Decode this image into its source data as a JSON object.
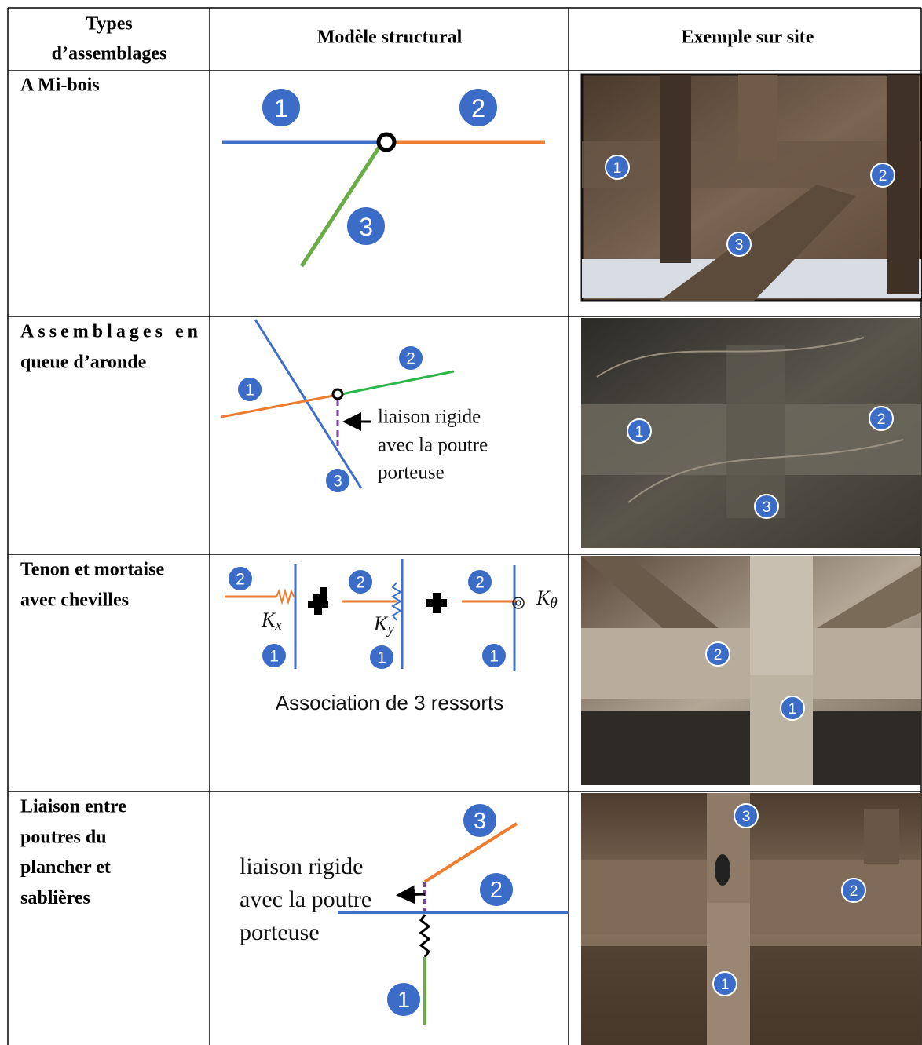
{
  "table": {
    "header": [
      [
        "Types",
        "d’assemblages"
      ],
      [
        "Modèle structural"
      ],
      [
        "Exemple sur site"
      ]
    ],
    "rows": [
      {
        "type": [
          "A Mi-bois"
        ],
        "model": {
          "badges": [
            "1",
            "2",
            "3"
          ]
        },
        "photo": {
          "badges": [
            "1",
            "2",
            "3"
          ]
        }
      },
      {
        "type": [
          "Assemblages en",
          "queue d’aronde"
        ],
        "model": {
          "badges": [
            "1",
            "2",
            "3"
          ],
          "note": [
            "liaison rigide",
            "avec la poutre",
            "porteuse"
          ]
        },
        "photo": {
          "badges": [
            "1",
            "2",
            "3"
          ]
        }
      },
      {
        "type": [
          "Tenon et mortaise",
          "avec chevilles"
        ],
        "model": {
          "badges": [
            "2",
            "1",
            "2",
            "1",
            "2",
            "1"
          ],
          "stiffness": [
            {
              "symbol": "K",
              "sub": "x"
            },
            {
              "symbol": "K",
              "sub": "y"
            },
            {
              "symbol": "K",
              "sub": "θ"
            }
          ],
          "caption": "Association de 3 ressorts"
        },
        "photo": {
          "badges": [
            "2",
            "1"
          ]
        }
      },
      {
        "type": [
          "Liaison entre",
          "poutres du",
          "plancher et",
          "sablières"
        ],
        "model": {
          "badges": [
            "3",
            "2",
            "1"
          ],
          "note": [
            "liaison rigide",
            "avec la poutre",
            "porteuse"
          ]
        },
        "photo": {
          "badges": [
            "3",
            "2",
            "1"
          ]
        }
      }
    ]
  }
}
